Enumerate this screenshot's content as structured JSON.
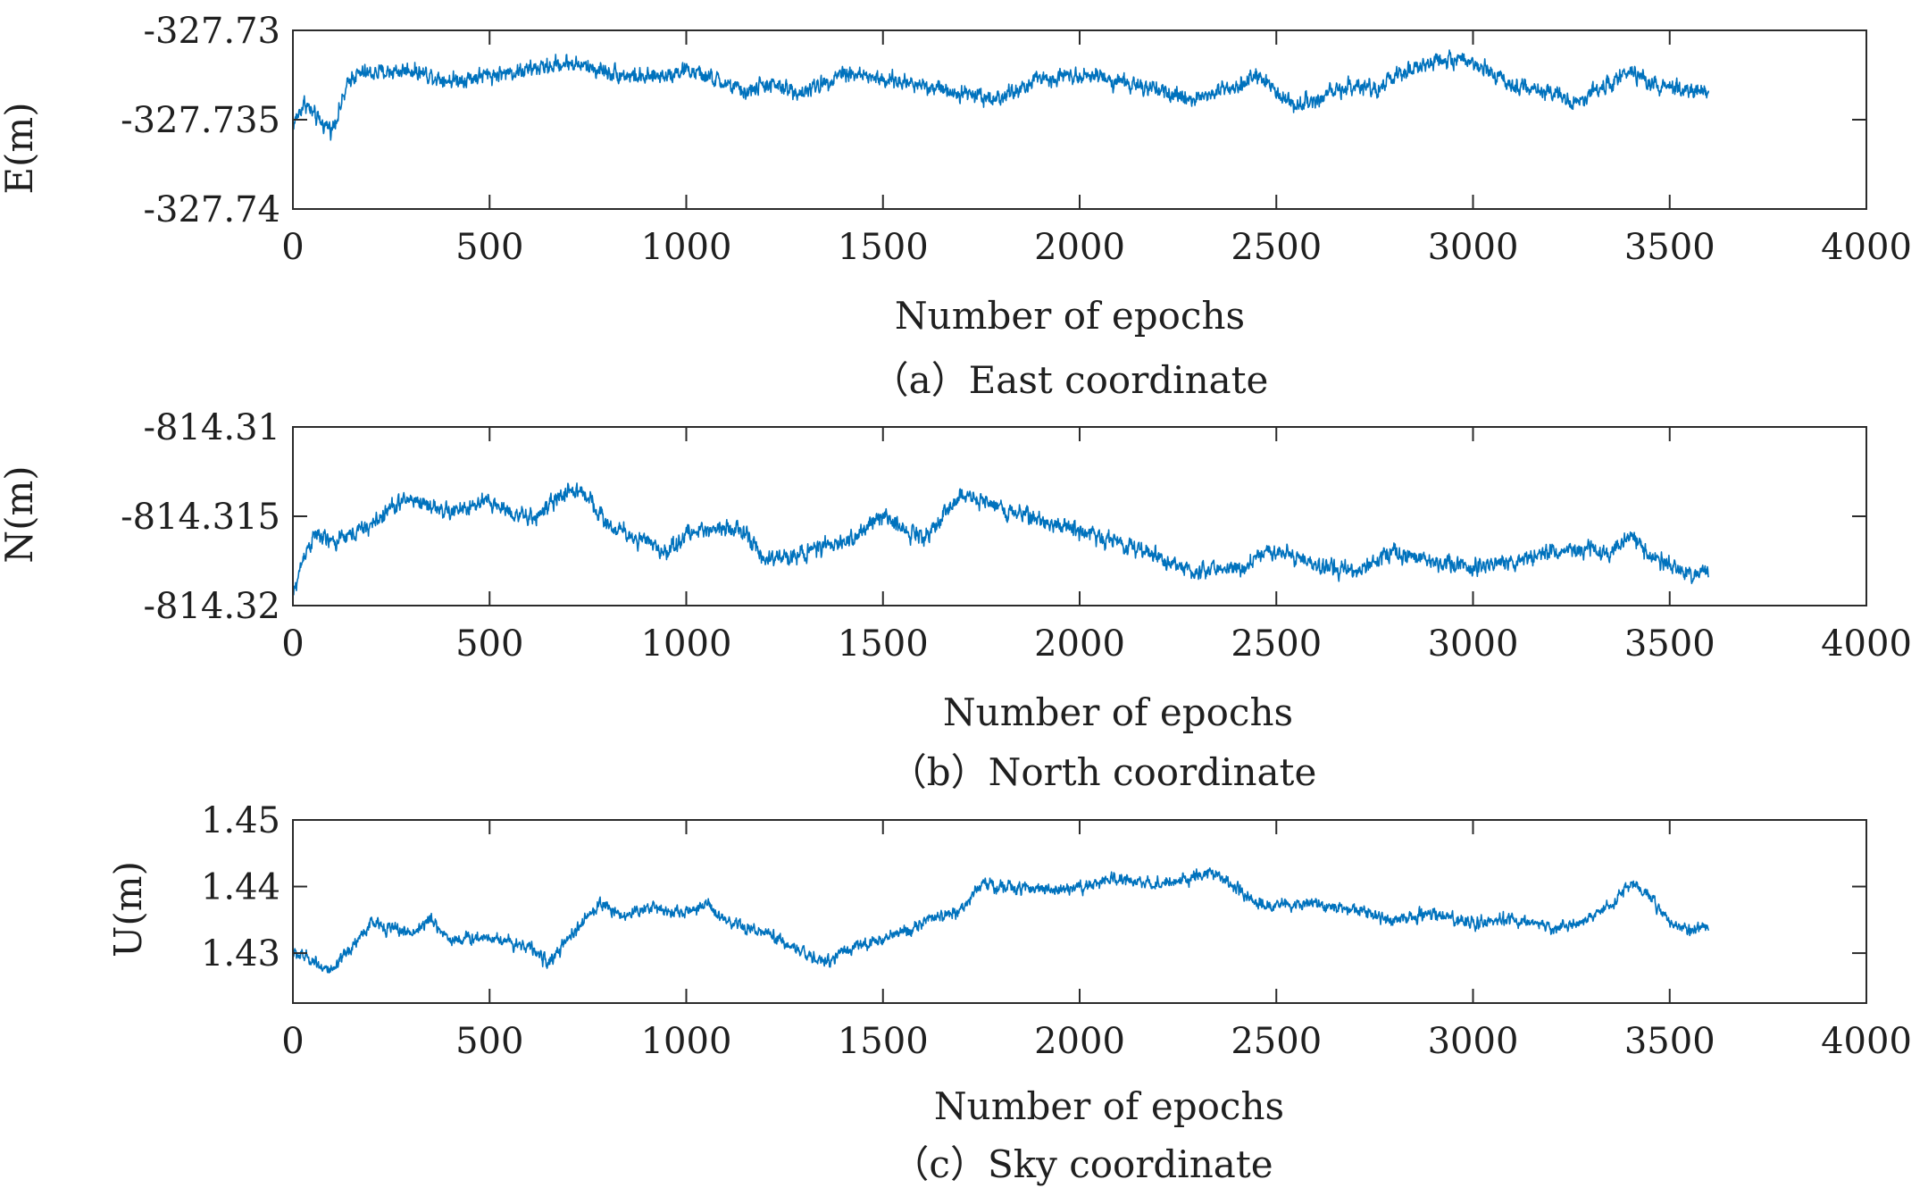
{
  "colors": {
    "series": "#0072BD"
  },
  "chart_data": [
    {
      "type": "line",
      "title": "",
      "caption": "（a）East coordinate",
      "xlabel": "Number of epochs",
      "ylabel": "E(m)",
      "xlim": [
        0,
        4000
      ],
      "ylim": [
        -327.74,
        -327.73
      ],
      "x_ticks": [
        0,
        500,
        1000,
        1500,
        2000,
        2500,
        3000,
        3500,
        4000
      ],
      "x_tick_labels": [
        "0",
        "500",
        "1000",
        "1500",
        "2000",
        "2500",
        "3000",
        "3500",
        "4000"
      ],
      "y_ticks": [
        -327.74,
        -327.735,
        -327.73
      ],
      "y_tick_labels": [
        "-327.74",
        "-327.735",
        "-327.73"
      ],
      "grid": false,
      "series": [
        {
          "name": "E",
          "n_points": 3600,
          "noise": 0.00105,
          "trend_x": [
            0,
            30,
            60,
            100,
            150,
            300,
            400,
            500,
            600,
            700,
            800,
            900,
            1000,
            1100,
            1150,
            1200,
            1300,
            1400,
            1500,
            1600,
            1700,
            1800,
            1850,
            1900,
            2000,
            2100,
            2200,
            2300,
            2400,
            2450,
            2500,
            2550,
            2600,
            2700,
            2750,
            2800,
            2900,
            2950,
            3000,
            3050,
            3100,
            3200,
            3250,
            3300,
            3350,
            3400,
            3450,
            3500,
            3550,
            3600
          ],
          "trend_y": [
            -327.7353,
            -327.734,
            -327.735,
            -327.7355,
            -327.7325,
            -327.7322,
            -327.7328,
            -327.7325,
            -327.7322,
            -327.7318,
            -327.7323,
            -327.7327,
            -327.7322,
            -327.733,
            -327.7335,
            -327.733,
            -327.7335,
            -327.7323,
            -327.7328,
            -327.733,
            -327.7335,
            -327.7338,
            -327.7333,
            -327.7327,
            -327.7324,
            -327.7328,
            -327.7335,
            -327.7338,
            -327.733,
            -327.7325,
            -327.7335,
            -327.7342,
            -327.7338,
            -327.733,
            -327.7335,
            -327.7326,
            -327.7318,
            -327.7315,
            -327.732,
            -327.7325,
            -327.733,
            -327.7335,
            -327.734,
            -327.7335,
            -327.733,
            -327.7322,
            -327.733,
            -327.7332,
            -327.7335,
            -327.7335
          ]
        }
      ]
    },
    {
      "type": "line",
      "title": "",
      "caption": "（b）North coordinate",
      "xlabel": "Number of epochs",
      "ylabel": "N(m)",
      "xlim": [
        0,
        4000
      ],
      "ylim": [
        -814.32,
        -814.31
      ],
      "x_ticks": [
        0,
        500,
        1000,
        1500,
        2000,
        2500,
        3000,
        3500,
        4000
      ],
      "x_tick_labels": [
        "0",
        "500",
        "1000",
        "1500",
        "2000",
        "2500",
        "3000",
        "3500",
        "4000"
      ],
      "y_ticks": [
        -814.32,
        -814.315,
        -814.31
      ],
      "y_tick_labels": [
        "-814.32",
        "-814.315",
        "-814.31"
      ],
      "grid": false,
      "series": [
        {
          "name": "N",
          "n_points": 3600,
          "noise": 0.00105,
          "trend_x": [
            0,
            30,
            60,
            100,
            150,
            200,
            250,
            300,
            400,
            500,
            600,
            650,
            700,
            750,
            800,
            900,
            950,
            1000,
            1100,
            1150,
            1200,
            1300,
            1400,
            1500,
            1600,
            1700,
            1800,
            1900,
            2000,
            2100,
            2200,
            2300,
            2350,
            2400,
            2500,
            2600,
            2700,
            2800,
            2900,
            3000,
            3100,
            3200,
            3300,
            3350,
            3400,
            3450,
            3500,
            3550,
            3600
          ],
          "trend_y": [
            -814.3195,
            -814.317,
            -814.316,
            -814.3165,
            -814.316,
            -814.3155,
            -814.3145,
            -814.314,
            -814.3148,
            -814.3142,
            -814.3152,
            -814.3145,
            -814.3135,
            -814.3138,
            -814.3155,
            -814.3165,
            -814.317,
            -814.316,
            -814.3155,
            -814.316,
            -814.3175,
            -814.317,
            -814.3165,
            -814.315,
            -814.3162,
            -814.3138,
            -814.3145,
            -814.3152,
            -814.3158,
            -814.3165,
            -814.3172,
            -814.3182,
            -814.3178,
            -814.318,
            -814.3168,
            -814.3178,
            -814.3182,
            -814.317,
            -814.3175,
            -814.318,
            -814.3175,
            -814.317,
            -814.3168,
            -814.317,
            -814.3162,
            -814.3172,
            -814.3178,
            -814.3182,
            -814.3182
          ]
        }
      ]
    },
    {
      "type": "line",
      "title": "",
      "caption": "（c）Sky coordinate",
      "xlabel": "Number of epochs",
      "ylabel": "U(m)",
      "xlim": [
        0,
        4000
      ],
      "ylim": [
        1.4225,
        1.45
      ],
      "x_ticks": [
        0,
        500,
        1000,
        1500,
        2000,
        2500,
        3000,
        3500,
        4000
      ],
      "x_tick_labels": [
        "0",
        "500",
        "1000",
        "1500",
        "2000",
        "2500",
        "3000",
        "3500",
        "4000"
      ],
      "y_ticks": [
        1.43,
        1.44,
        1.45
      ],
      "y_tick_labels": [
        "1.43",
        "1.44",
        "1.45"
      ],
      "grid": false,
      "series": [
        {
          "name": "U",
          "n_points": 3600,
          "noise": 0.0021,
          "trend_x": [
            0,
            50,
            100,
            150,
            200,
            300,
            350,
            400,
            500,
            600,
            650,
            700,
            780,
            850,
            900,
            1000,
            1050,
            1100,
            1200,
            1300,
            1350,
            1400,
            1500,
            1600,
            1700,
            1750,
            1800,
            1900,
            2000,
            2100,
            2200,
            2300,
            2350,
            2400,
            2450,
            2500,
            2600,
            2700,
            2800,
            2900,
            3000,
            3100,
            3200,
            3250,
            3300,
            3350,
            3400,
            3450,
            3500,
            3550,
            3600
          ],
          "trend_y": [
            1.43,
            1.429,
            1.427,
            1.431,
            1.4345,
            1.433,
            1.435,
            1.432,
            1.4325,
            1.431,
            1.4285,
            1.432,
            1.4375,
            1.4355,
            1.437,
            1.436,
            1.4375,
            1.4345,
            1.433,
            1.43,
            1.4285,
            1.4305,
            1.432,
            1.4345,
            1.4365,
            1.4405,
            1.44,
            1.4395,
            1.44,
            1.441,
            1.4405,
            1.4415,
            1.442,
            1.4395,
            1.4375,
            1.437,
            1.4375,
            1.4365,
            1.435,
            1.436,
            1.4345,
            1.435,
            1.434,
            1.434,
            1.4355,
            1.437,
            1.4405,
            1.4385,
            1.4345,
            1.4335,
            1.434
          ]
        }
      ]
    }
  ]
}
